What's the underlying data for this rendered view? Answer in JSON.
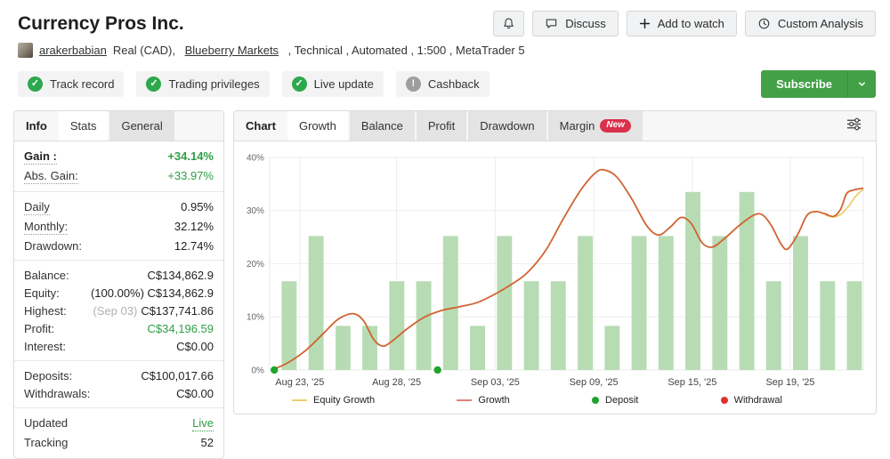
{
  "theme": {
    "accent_green": "#2e9e43",
    "subscribe_green": "#43a047",
    "bar_green": "#b7dcb4",
    "growth_line": "#d2622f",
    "equity_line": "#ecd06c",
    "deposit_dot": "#1fa32c",
    "withdrawal_dot": "#e03131",
    "new_badge": "#d9304c"
  },
  "header": {
    "title": "Currency Pros Inc.",
    "actions": [
      {
        "name": "notifications",
        "icon": "bell-icon",
        "label": ""
      },
      {
        "name": "discuss",
        "icon": "chat-icon",
        "label": "Discuss"
      },
      {
        "name": "add-to-watch",
        "icon": "plus-icon",
        "label": "Add to watch"
      },
      {
        "name": "custom-analysis",
        "icon": "clock-icon",
        "label": "Custom Analysis"
      }
    ]
  },
  "account": {
    "username": "arakerbabian",
    "details_prefix": "Real (CAD), ",
    "broker": "Blueberry Markets",
    "details_suffix": " , Technical , Automated , 1:500 , MetaTrader 5"
  },
  "badges": [
    {
      "label": "Track record",
      "status": "ok",
      "icon": "check-icon"
    },
    {
      "label": "Trading privileges",
      "status": "ok",
      "icon": "check-icon"
    },
    {
      "label": "Live update",
      "status": "ok",
      "icon": "check-icon"
    },
    {
      "label": "Cashback",
      "status": "info",
      "icon": "exclamation-icon"
    }
  ],
  "subscribe": {
    "label": "Subscribe",
    "caret_icon": "chevron-down-icon"
  },
  "info_panel": {
    "tabs": [
      {
        "label": "Info",
        "style": "flat"
      },
      {
        "label": "Stats",
        "style": "active"
      },
      {
        "label": "General",
        "style": "chip"
      }
    ],
    "groups": [
      {
        "rows": [
          {
            "label": "Gain :",
            "label_bold": true,
            "dotted": true,
            "value": "+34.14%",
            "style": "green-bold"
          },
          {
            "label": "Abs. Gain:",
            "dotted": true,
            "value": "+33.97%",
            "style": "green"
          }
        ]
      },
      {
        "rows": [
          {
            "label": "Daily",
            "dotted": true,
            "value": "0.95%"
          },
          {
            "label": "Monthly:",
            "dotted": true,
            "value": "32.12%"
          },
          {
            "label": "Drawdown:",
            "value": "12.74%"
          }
        ]
      },
      {
        "rows": [
          {
            "label": "Balance:",
            "value": "C$134,862.9"
          },
          {
            "label": "Equity:",
            "value": "(100.00%) C$134,862.9"
          },
          {
            "label": "Highest:",
            "prefix": "(Sep 03)",
            "value": "C$137,741.86"
          },
          {
            "label": "Profit:",
            "value": "C$34,196.59",
            "style": "green"
          },
          {
            "label": "Interest:",
            "value": "C$0.00"
          }
        ]
      },
      {
        "rows": [
          {
            "label": "Deposits:",
            "value": "C$100,017.66"
          },
          {
            "label": "Withdrawals:",
            "value": "C$0.00"
          }
        ]
      },
      {
        "rows": [
          {
            "label": "Updated",
            "value": "Live",
            "style": "dotted-green",
            "value_interactable": true
          },
          {
            "label": "Tracking",
            "value": "52"
          }
        ]
      }
    ]
  },
  "chart_panel": {
    "tabs": [
      {
        "label": "Chart",
        "style": "flat"
      },
      {
        "label": "Growth",
        "style": "active"
      },
      {
        "label": "Balance",
        "style": "chip"
      },
      {
        "label": "Profit",
        "style": "chip"
      },
      {
        "label": "Drawdown",
        "style": "chip"
      },
      {
        "label": "Margin",
        "style": "chip",
        "badge": "New"
      }
    ],
    "filter_icon": "tune-icon"
  },
  "chart_data": {
    "type": "bar+line",
    "title": "Growth",
    "ylim": [
      0,
      40
    ],
    "yticks": [
      {
        "value": 0,
        "label": "0%"
      },
      {
        "value": 10,
        "label": "10%"
      },
      {
        "value": 20,
        "label": "20%"
      },
      {
        "value": 30,
        "label": "30%"
      },
      {
        "value": 40,
        "label": "40%"
      }
    ],
    "xticks": [
      {
        "label": "Aug 23, '25",
        "f": 0.051
      },
      {
        "label": "Aug 28, '25",
        "f": 0.214
      },
      {
        "label": "Sep 03, '25",
        "f": 0.38
      },
      {
        "label": "Sep 09, '25",
        "f": 0.546
      },
      {
        "label": "Sep 15, '25",
        "f": 0.712
      },
      {
        "label": "Sep 19, '25",
        "f": 0.877
      }
    ],
    "bars": {
      "name": "daily-activity-bars",
      "color": "#b7dcb4",
      "first_center_f": 0.033,
      "last_center_f": 0.985,
      "values_pct": [
        16.7,
        25.2,
        8.3,
        8.3,
        16.7,
        16.7,
        25.2,
        8.3,
        25.2,
        16.7,
        16.7,
        25.2,
        8.3,
        25.2,
        25.2,
        33.5,
        25.2,
        33.5,
        16.7,
        25.2,
        16.7,
        16.7
      ]
    },
    "series": [
      {
        "name": "Equity Growth",
        "color": "#ecd06c",
        "points": [
          [
            0.935,
            29.2
          ],
          [
            0.95,
            28.8
          ],
          [
            0.962,
            29.3
          ],
          [
            0.975,
            30.8
          ],
          [
            0.988,
            32.8
          ],
          [
            1.0,
            34.0
          ]
        ]
      },
      {
        "name": "Growth",
        "color": "#d2622f",
        "points": [
          [
            0.008,
            0.2
          ],
          [
            0.03,
            1.3
          ],
          [
            0.06,
            3.6
          ],
          [
            0.09,
            6.8
          ],
          [
            0.115,
            9.5
          ],
          [
            0.14,
            10.6
          ],
          [
            0.158,
            9.3
          ],
          [
            0.175,
            5.8
          ],
          [
            0.19,
            4.5
          ],
          [
            0.205,
            5.3
          ],
          [
            0.23,
            7.6
          ],
          [
            0.26,
            9.9
          ],
          [
            0.29,
            11.2
          ],
          [
            0.32,
            11.9
          ],
          [
            0.35,
            12.7
          ],
          [
            0.38,
            14.3
          ],
          [
            0.41,
            16.3
          ],
          [
            0.435,
            18.4
          ],
          [
            0.465,
            22.5
          ],
          [
            0.495,
            28.5
          ],
          [
            0.525,
            34.0
          ],
          [
            0.55,
            37.2
          ],
          [
            0.565,
            37.6
          ],
          [
            0.585,
            36.3
          ],
          [
            0.61,
            32.2
          ],
          [
            0.635,
            27.2
          ],
          [
            0.655,
            25.4
          ],
          [
            0.675,
            26.9
          ],
          [
            0.693,
            28.7
          ],
          [
            0.71,
            27.6
          ],
          [
            0.728,
            24.0
          ],
          [
            0.745,
            23.1
          ],
          [
            0.765,
            24.6
          ],
          [
            0.79,
            27.1
          ],
          [
            0.815,
            29.1
          ],
          [
            0.83,
            29.2
          ],
          [
            0.845,
            27.2
          ],
          [
            0.862,
            23.6
          ],
          [
            0.873,
            22.8
          ],
          [
            0.89,
            25.6
          ],
          [
            0.905,
            29.1
          ],
          [
            0.92,
            29.8
          ],
          [
            0.935,
            29.4
          ],
          [
            0.95,
            28.9
          ],
          [
            0.962,
            30.3
          ],
          [
            0.972,
            33.2
          ],
          [
            0.985,
            33.9
          ],
          [
            1.0,
            34.2
          ]
        ]
      }
    ],
    "markers": {
      "deposits": {
        "color": "#1fa32c",
        "points": [
          [
            0.008,
            0
          ],
          [
            0.283,
            0
          ]
        ]
      },
      "withdrawals": {
        "color": "#e03131",
        "points": []
      }
    },
    "legend": [
      {
        "label": "Equity Growth",
        "swatch": "line",
        "color": "#ecd06c"
      },
      {
        "label": "Growth",
        "swatch": "line",
        "color": "#de8276"
      },
      {
        "label": "Deposit",
        "swatch": "dot",
        "color": "#1fa32c"
      },
      {
        "label": "Withdrawal",
        "swatch": "dot",
        "color": "#e03131"
      }
    ],
    "grid": true,
    "legend_position": "bottom"
  }
}
